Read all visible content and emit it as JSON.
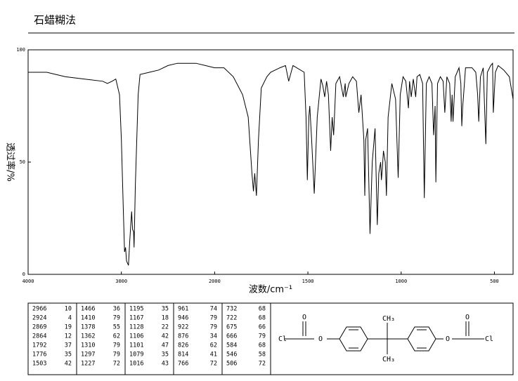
{
  "chart_data": {
    "type": "line",
    "title": "石蜡糊法",
    "xlabel": "波数/cm⁻¹",
    "ylabel": "透过率/%",
    "xlim": [
      4000,
      400
    ],
    "x_scale_split": 2000,
    "ylim": [
      0,
      100
    ],
    "xticks": [
      4000,
      3000,
      2000,
      1500,
      1000,
      500
    ],
    "yticks": [
      0,
      50,
      100
    ],
    "color": "#000000",
    "x": [
      4000,
      3800,
      3600,
      3400,
      3200,
      3150,
      3100,
      3060,
      3020,
      3000,
      2980,
      2966,
      2955,
      2945,
      2924,
      2910,
      2890,
      2880,
      2869,
      2864,
      2850,
      2820,
      2800,
      2700,
      2600,
      2500,
      2400,
      2300,
      2200,
      2100,
      2000,
      1950,
      1900,
      1850,
      1820,
      1800,
      1792,
      1785,
      1776,
      1765,
      1750,
      1720,
      1700,
      1650,
      1620,
      1603,
      1580,
      1520,
      1510,
      1503,
      1495,
      1490,
      1480,
      1466,
      1450,
      1430,
      1420,
      1410,
      1400,
      1390,
      1378,
      1370,
      1362,
      1350,
      1330,
      1310,
      1300,
      1297,
      1280,
      1260,
      1240,
      1227,
      1215,
      1200,
      1195,
      1190,
      1180,
      1167,
      1155,
      1140,
      1128,
      1120,
      1110,
      1106,
      1101,
      1095,
      1085,
      1079,
      1070,
      1050,
      1030,
      1016,
      1005,
      990,
      975,
      961,
      955,
      946,
      935,
      922,
      915,
      900,
      885,
      876,
      865,
      850,
      835,
      826,
      818,
      814,
      805,
      790,
      775,
      766,
      755,
      740,
      732,
      727,
      722,
      710,
      690,
      680,
      675,
      670,
      666,
      655,
      620,
      600,
      590,
      584,
      575,
      560,
      546,
      538,
      520,
      510,
      506,
      495,
      480,
      450,
      420,
      400
    ],
    "values": [
      90,
      90,
      88,
      87,
      86,
      85,
      86,
      87,
      80,
      60,
      30,
      10,
      12,
      6,
      4,
      15,
      28,
      20,
      19,
      12,
      40,
      80,
      89,
      90,
      91,
      93,
      94,
      94,
      94,
      93,
      92,
      92,
      88,
      80,
      70,
      45,
      37,
      45,
      35,
      60,
      83,
      88,
      90,
      92,
      93,
      86,
      93,
      90,
      70,
      42,
      70,
      75,
      60,
      36,
      70,
      87,
      84,
      79,
      86,
      80,
      55,
      70,
      62,
      85,
      88,
      79,
      85,
      79,
      85,
      88,
      86,
      72,
      80,
      60,
      35,
      60,
      65,
      18,
      50,
      65,
      22,
      45,
      50,
      42,
      47,
      55,
      50,
      35,
      70,
      85,
      78,
      43,
      80,
      88,
      86,
      74,
      86,
      79,
      87,
      79,
      88,
      89,
      85,
      34,
      85,
      88,
      85,
      62,
      75,
      41,
      85,
      88,
      86,
      72,
      88,
      85,
      68,
      80,
      68,
      88,
      92,
      85,
      66,
      75,
      79,
      92,
      92,
      90,
      80,
      68,
      88,
      92,
      58,
      90,
      93,
      94,
      72,
      90,
      93,
      91,
      88,
      78
    ]
  },
  "peaks": {
    "wavenumber": [
      2966,
      2924,
      2869,
      2864,
      1792,
      1776,
      1503,
      1466,
      1410,
      1378,
      1362,
      1310,
      1297,
      1227,
      1195,
      1167,
      1128,
      1106,
      1101,
      1079,
      1016,
      961,
      946,
      922,
      876,
      826,
      814,
      766,
      732,
      722,
      675,
      666,
      584,
      546,
      506
    ],
    "transmittance": [
      10,
      4,
      19,
      12,
      37,
      35,
      42,
      36,
      79,
      55,
      62,
      79,
      79,
      72,
      35,
      18,
      22,
      42,
      47,
      35,
      43,
      74,
      79,
      79,
      34,
      62,
      41,
      72,
      68,
      68,
      66,
      79,
      68,
      58,
      72
    ]
  },
  "structure": {
    "labels": [
      "Cl",
      "O",
      "O",
      "CH₃",
      "CH₃",
      "O",
      "O",
      "Cl"
    ]
  }
}
